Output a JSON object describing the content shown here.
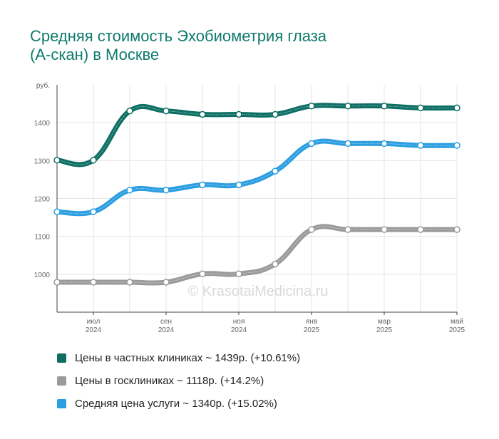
{
  "title_lines": [
    "Средняя стоимость Эхобиометрия глаза",
    "(А-скан) в Москве"
  ],
  "watermark": "© KrasotaiMedicina.ru",
  "chart_data": {
    "type": "line",
    "y_unit": "руб.",
    "ylim": [
      900,
      1500
    ],
    "yticks": [
      1000,
      1100,
      1200,
      1300,
      1400
    ],
    "x": [
      "2024-06",
      "2024-07",
      "2024-08",
      "2024-09",
      "2024-10",
      "2024-11",
      "2024-12",
      "2025-01",
      "2025-02",
      "2025-03",
      "2025-04",
      "2025-05"
    ],
    "x_tick_labels": [
      {
        "month": "2024-07",
        "line1": "июл",
        "line2": "2024"
      },
      {
        "month": "2024-09",
        "line1": "сен",
        "line2": "2024"
      },
      {
        "month": "2024-11",
        "line1": "ноя",
        "line2": "2024"
      },
      {
        "month": "2025-01",
        "line1": "янв",
        "line2": "2025"
      },
      {
        "month": "2025-03",
        "line1": "мар",
        "line2": "2025"
      },
      {
        "month": "2025-05",
        "line1": "май",
        "line2": "2025"
      }
    ],
    "grid": true,
    "legend_position": "bottom",
    "series": [
      {
        "label": "Цены в частных клиниках ~ 1439р. (+10.61%)",
        "color": "#0d6e63",
        "values": [
          1301,
          1301,
          1431,
          1431,
          1422,
          1422,
          1422,
          1444,
          1444,
          1444,
          1439,
          1439
        ]
      },
      {
        "label": "Цены в госклиниках ~ 1118р. (+14.2%)",
        "color": "#9a9a9a",
        "values": [
          979,
          979,
          979,
          979,
          1001,
          1001,
          1027,
          1118,
          1118,
          1118,
          1118,
          1118
        ]
      },
      {
        "label": "Средняя цена услуги ~ 1340р. (+15.02%)",
        "color": "#2a9ee0",
        "values": [
          1165,
          1165,
          1222,
          1222,
          1236,
          1236,
          1272,
          1345,
          1345,
          1345,
          1340,
          1340
        ]
      }
    ]
  }
}
